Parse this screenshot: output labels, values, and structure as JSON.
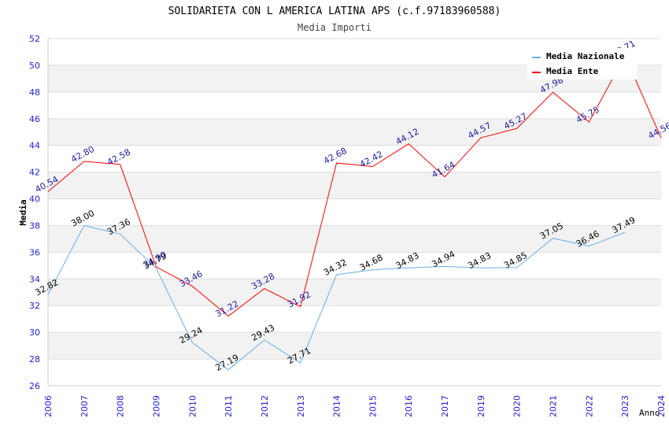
{
  "chart_data": {
    "type": "line",
    "title": "SOLIDARIETA CON L AMERICA LATINA APS (c.f.97183960588)",
    "subtitle": "Media Importi",
    "xlabel": "Anno",
    "ylabel": "Media",
    "ylim": [
      26,
      52
    ],
    "yticks": [
      "26",
      "28",
      "30",
      "32",
      "34",
      "36",
      "38",
      "40",
      "42",
      "44",
      "46",
      "48",
      "50",
      "52"
    ],
    "categories": [
      "2006",
      "2007",
      "2008",
      "2009",
      "2010",
      "2011",
      "2012",
      "2013",
      "2014",
      "2015",
      "2016",
      "2017",
      "2019",
      "2020",
      "2021",
      "2022",
      "2023",
      "2024"
    ],
    "grid": true,
    "legend_position": "top-right",
    "series": [
      {
        "name": "Media Nazionale",
        "color": "#6aaee8",
        "label_color": "#000000",
        "values": [
          32.82,
          38.0,
          37.36,
          34.79,
          29.24,
          27.19,
          29.43,
          27.71,
          34.32,
          34.68,
          34.83,
          34.94,
          34.83,
          34.85,
          37.05,
          36.46,
          37.49,
          null
        ],
        "labels": [
          "32.82",
          "38.00",
          "37.36",
          "34.79",
          "29.24",
          "27.19",
          "29.43",
          "27.71",
          "34.32",
          "34.68",
          "34.83",
          "34.94",
          "34.83",
          "34.85",
          "37.05",
          "36.46",
          "37.49",
          ""
        ]
      },
      {
        "name": "Media Ente",
        "color": "#ff0000",
        "label_color": "#1a1aa0",
        "values": [
          40.54,
          42.8,
          42.58,
          34.9,
          33.46,
          31.22,
          33.28,
          31.92,
          42.68,
          42.42,
          44.12,
          41.64,
          44.57,
          45.27,
          47.98,
          45.75,
          50.71,
          44.56
        ],
        "labels": [
          "40.54",
          "42.80",
          "42.58",
          "34.90",
          "33.46",
          "31.22",
          "33.28",
          "31.92",
          "42.68",
          "42.42",
          "44.12",
          "41.64",
          "44.57",
          "45.27",
          "47.98",
          "45.75",
          "50.71",
          "44.56"
        ]
      }
    ]
  }
}
